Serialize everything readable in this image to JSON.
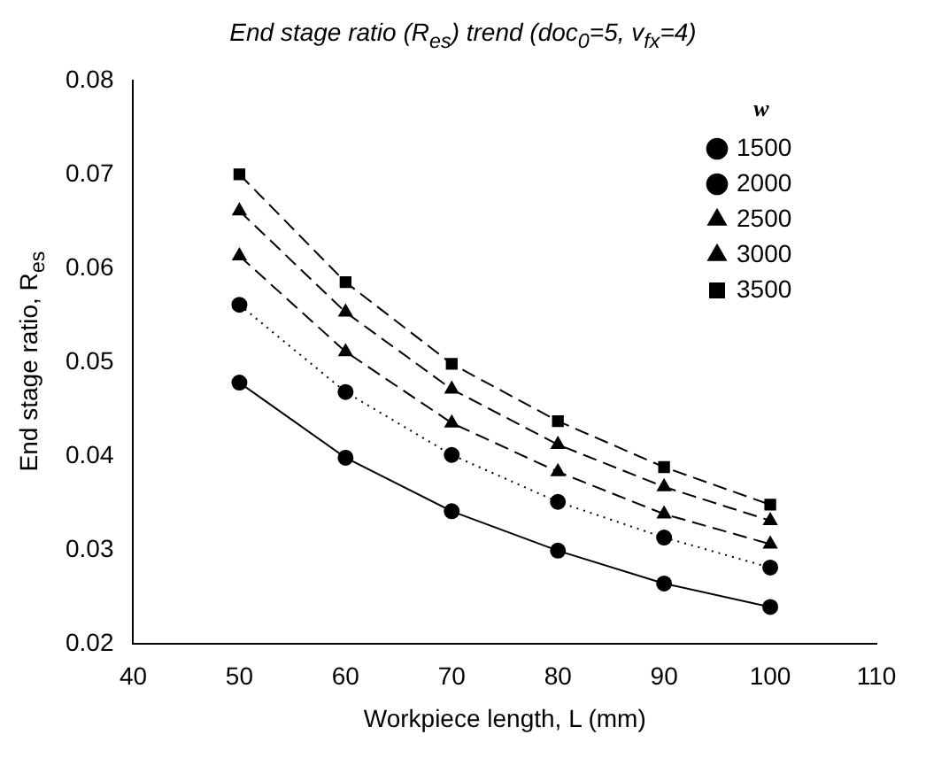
{
  "chart_data": {
    "type": "line",
    "title": "End stage ratio (R$_{es}$) trend (doc$_{0}$=5, v$_{fx}$=4)",
    "xlabel": "Workpiece length, L (mm)",
    "ylabel": "End stage ratio, R$_{es}$",
    "legend_title": "w",
    "x": [
      50,
      60,
      70,
      80,
      90,
      100
    ],
    "xlim": [
      40,
      110
    ],
    "xticks": [
      40,
      50,
      60,
      70,
      80,
      90,
      100,
      110
    ],
    "ylim": [
      0.02,
      0.08
    ],
    "yticks": [
      0.02,
      0.03,
      0.04,
      0.05,
      0.06,
      0.07,
      0.08
    ],
    "grid": false,
    "legend": "top right",
    "series": [
      {
        "name": "1500",
        "color": "#000000",
        "marker": "circle",
        "line_style": "solid",
        "values": [
          0.0478,
          0.0398,
          0.0341,
          0.0299,
          0.0264,
          0.0239
        ]
      },
      {
        "name": "2000",
        "color": "#000000",
        "marker": "circle",
        "line_style": "dotted",
        "values": [
          0.0561,
          0.0468,
          0.0401,
          0.0351,
          0.0313,
          0.0281
        ]
      },
      {
        "name": "2500",
        "color": "#000000",
        "marker": "triangle",
        "line_style": "dashed",
        "values": [
          0.0613,
          0.0511,
          0.0435,
          0.0383,
          0.0338,
          0.0306
        ]
      },
      {
        "name": "3000",
        "color": "#000000",
        "marker": "triangle",
        "line_style": "dashed",
        "values": [
          0.0661,
          0.0553,
          0.0471,
          0.0412,
          0.0367,
          0.0331
        ]
      },
      {
        "name": "3500",
        "color": "#000000",
        "marker": "square",
        "line_style": "dashed",
        "values": [
          0.07,
          0.0585,
          0.0498,
          0.0437,
          0.0388,
          0.0348
        ]
      }
    ]
  }
}
